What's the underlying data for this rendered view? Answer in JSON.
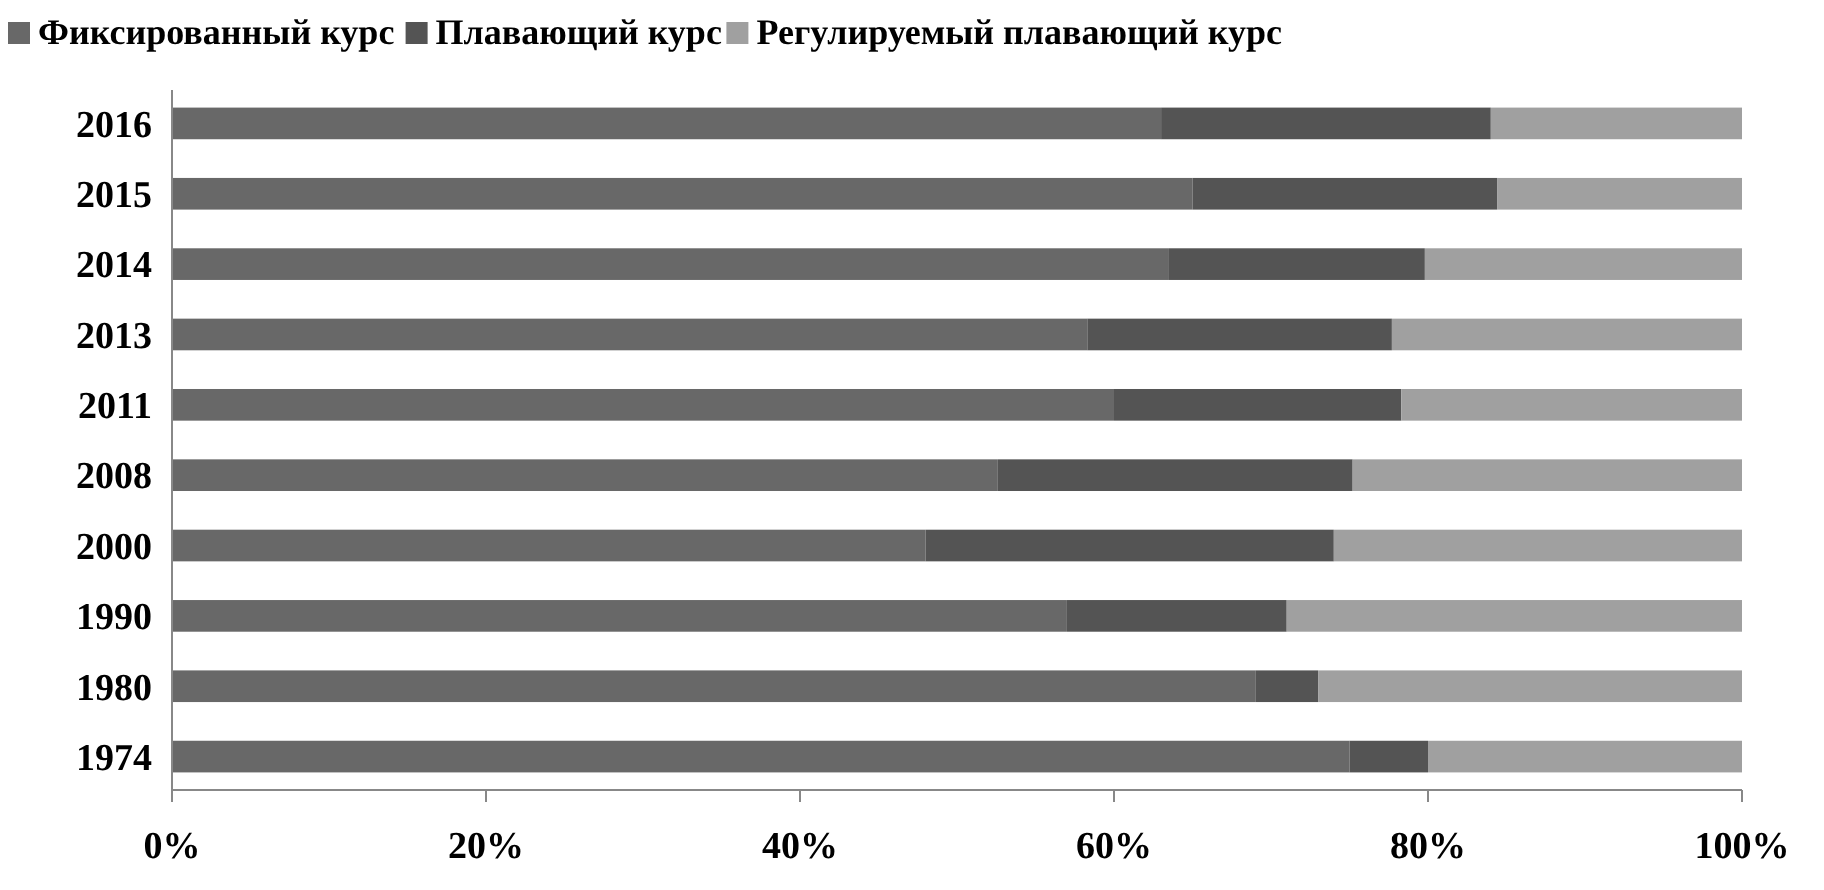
{
  "chart_data": {
    "type": "bar",
    "orientation": "horizontal",
    "stacked": true,
    "legend": "top",
    "grid": false,
    "categories": [
      "2016",
      "2015",
      "2014",
      "2013",
      "2011",
      "2008",
      "2000",
      "1990",
      "1980",
      "1974"
    ],
    "series": [
      {
        "name": "Фиксированный курс",
        "color": "#686868",
        "values": [
          63,
          65,
          63.5,
          58.3,
          60,
          52.6,
          48,
          57,
          69,
          75
        ]
      },
      {
        "name": "Плавающий курс",
        "color": "#545454",
        "values": [
          21,
          19.4,
          16.3,
          19.4,
          18.3,
          22.6,
          26,
          14,
          4,
          5
        ]
      },
      {
        "name": "Регулируемый плавающий курс",
        "color": "#a0a0a0",
        "values": [
          16,
          15.6,
          20.2,
          22.3,
          21.7,
          24.8,
          26,
          29,
          27,
          20
        ]
      }
    ],
    "xlim": [
      0,
      100
    ],
    "xticks": [
      {
        "value": 0,
        "label": "0%"
      },
      {
        "value": 20,
        "label": "20%"
      },
      {
        "value": 40,
        "label": "40%"
      },
      {
        "value": 60,
        "label": "60%"
      },
      {
        "value": 80,
        "label": "80%"
      },
      {
        "value": 100,
        "label": "100%"
      }
    ]
  }
}
